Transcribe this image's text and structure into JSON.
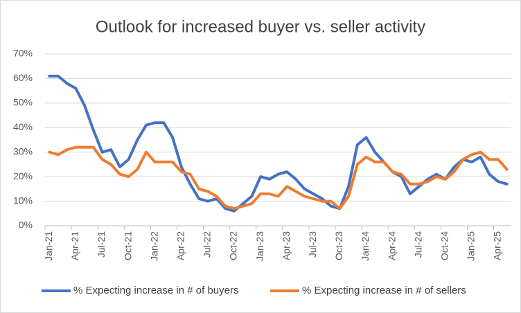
{
  "chart_data": {
    "type": "line",
    "title": "Outlook for increased buyer vs. seller activity",
    "categories": [
      "Jan-21",
      null,
      null,
      "Apr-21",
      null,
      null,
      "Jul-21",
      null,
      null,
      "Oct-21",
      null,
      null,
      "Jan-22",
      null,
      null,
      "Apr-22",
      null,
      null,
      "Jul-22",
      null,
      null,
      "Oct-22",
      null,
      null,
      "Jan-23",
      null,
      null,
      "Apr-23",
      null,
      null,
      "Jul-23",
      null,
      null,
      "Oct-23",
      null,
      null,
      "Jan-24",
      null,
      null,
      "Apr-24",
      null,
      null,
      "Jul-24",
      null,
      null,
      "Oct-24",
      null,
      null,
      "Jan-25",
      null,
      null,
      "Apr-25",
      null
    ],
    "series": [
      {
        "name": "% Expecting increase in # of buyers",
        "color": "#4472c4",
        "values": [
          61,
          61,
          58,
          56,
          49,
          39,
          30,
          31,
          24,
          27,
          35,
          41,
          42,
          42,
          36,
          24,
          17,
          11,
          10,
          11,
          7,
          6,
          9,
          12,
          20,
          19,
          21,
          22,
          19,
          15,
          13,
          11,
          8,
          7,
          16,
          33,
          36,
          30,
          26,
          22,
          20,
          13,
          16,
          19,
          21,
          19,
          24,
          27,
          26,
          28,
          21,
          18,
          17
        ]
      },
      {
        "name": "% Expecting increase in # of sellers",
        "color": "#ed7d31",
        "values": [
          30,
          29,
          31,
          32,
          32,
          32,
          27,
          25,
          21,
          20,
          23,
          30,
          26,
          26,
          26,
          22,
          21,
          15,
          14,
          12,
          8,
          7,
          8,
          9,
          13,
          13,
          12,
          16,
          14,
          12,
          11,
          10,
          10,
          7,
          12,
          25,
          28,
          26,
          26,
          22,
          21,
          17,
          17,
          18,
          20,
          19,
          22,
          27,
          29,
          30,
          27,
          27,
          23
        ]
      }
    ],
    "ylim": [
      0,
      70
    ],
    "yticks": [
      {
        "value": 0,
        "label": "0%"
      },
      {
        "value": 10,
        "label": "10%"
      },
      {
        "value": 20,
        "label": "20%"
      },
      {
        "value": 30,
        "label": "30%"
      },
      {
        "value": 40,
        "label": "40%"
      },
      {
        "value": 50,
        "label": "50%"
      },
      {
        "value": 60,
        "label": "60%"
      },
      {
        "value": 70,
        "label": "70%"
      }
    ],
    "grid": true,
    "legend": "bottom"
  }
}
